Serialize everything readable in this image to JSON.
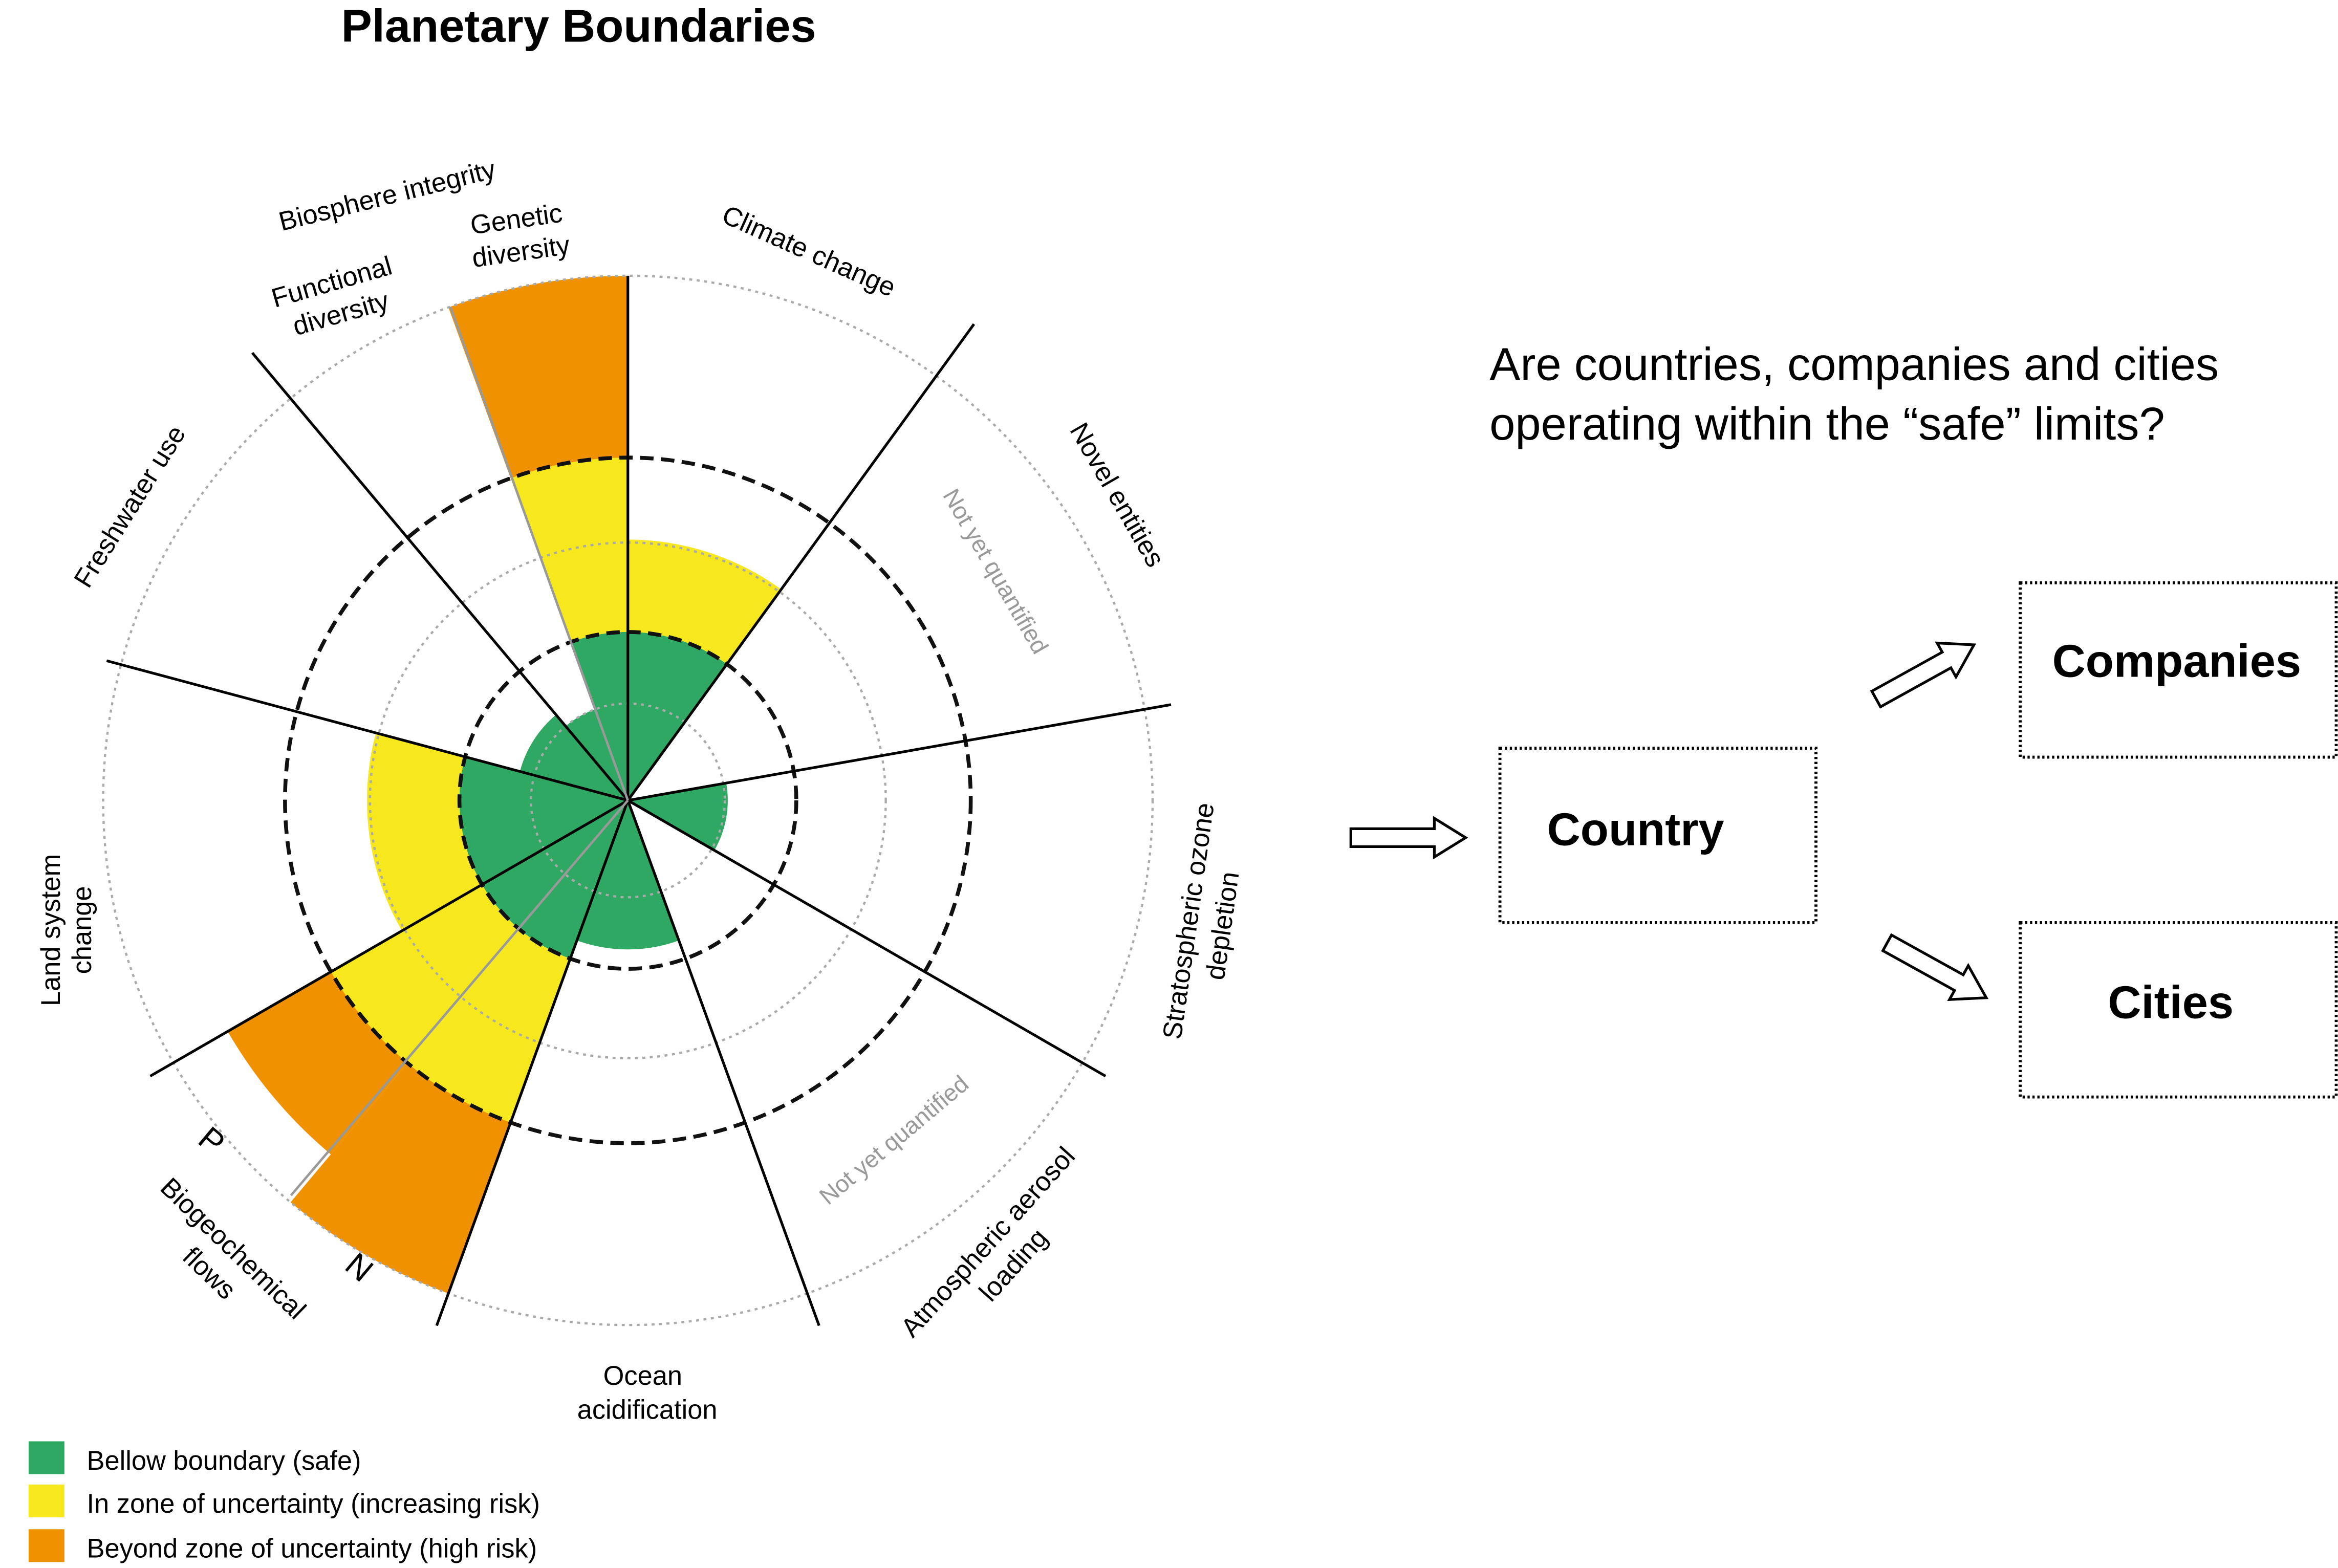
{
  "title": "Planetary Boundaries",
  "question_line1": "Are countries, companies and cities",
  "question_line2": "operating within the “safe” limits?",
  "boxes": {
    "country": "Country",
    "companies": "Companies",
    "cities": "Cities"
  },
  "segments": {
    "climate": "Climate change",
    "novel": "Novel entities",
    "ozone_line1": "Stratospheric ozone",
    "ozone_line2": "depletion",
    "aerosol_line1": "Atmospheric aerosol",
    "aerosol_line2": "loading",
    "ocean_line1": "Ocean",
    "ocean_line2": "acidification",
    "biogeo_line1": "Biogeochemical",
    "biogeo_line2": "flows",
    "biogeo_n": "N",
    "biogeo_p": "P",
    "land_line1": "Land system",
    "land_line2": "change",
    "freshwater": "Freshwater use",
    "biosphere": "Biosphere integrity",
    "functional_line1": "Functional",
    "functional_line2": "diversity",
    "genetic_line1": "Genetic",
    "genetic_line2": "diversity",
    "not_quantified_novel": "Not yet quantified",
    "not_quantified_aerosol": "Not yet quantified"
  },
  "legend": [
    {
      "label": "Bellow boundary (safe)",
      "color": "#2fa864"
    },
    {
      "label": "In zone of uncertainty (increasing risk)",
      "color": "#f6e81c"
    },
    {
      "label": "Beyond zone of uncertainty (high risk)",
      "color": "#f09200"
    }
  ],
  "colors": {
    "safe": "#2fa864",
    "uncertain": "#f6e81c",
    "high": "#f09200"
  }
}
